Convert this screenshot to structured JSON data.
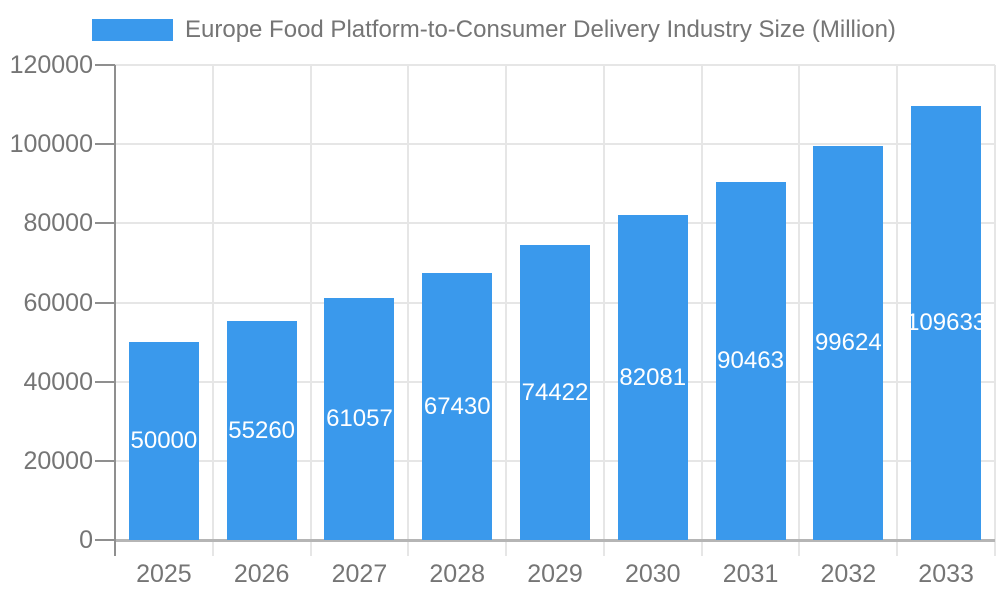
{
  "legend": {
    "items": [
      {
        "label": "Europe Food Platform-to-Consumer Delivery Industry Size (Million)",
        "swatch_color": "#3a99ec"
      }
    ]
  },
  "chart_data": {
    "type": "bar",
    "title": "Europe Food Platform-to-Consumer Delivery Industry Size (Million)",
    "categories": [
      "2025",
      "2026",
      "2027",
      "2028",
      "2029",
      "2030",
      "2031",
      "2032",
      "2033"
    ],
    "series": [
      {
        "name": "Europe Food Platform-to-Consumer Delivery Industry Size (Million)",
        "values": [
          50000,
          55260,
          61057,
          67430,
          74422,
          82081,
          90463,
          99624,
          109633
        ]
      }
    ],
    "value_labels": [
      "50000",
      "55260",
      "61057",
      "67430",
      "74422",
      "82081",
      "90463",
      "99624",
      "109633"
    ],
    "xlabel": "",
    "ylabel": "",
    "ylim": [
      0,
      120000
    ],
    "yticks": [
      0,
      20000,
      40000,
      60000,
      80000,
      100000,
      120000
    ],
    "ytick_labels": [
      "0",
      "20000",
      "40000",
      "60000",
      "80000",
      "100000",
      "120000"
    ],
    "grid": true,
    "legend_position": "top"
  },
  "colors": {
    "bar": "#3a99ec",
    "label_text": "#757575",
    "value_label_text": "#ffffff",
    "gridline": "#e6e6e6",
    "axis_y_line": "#8f8f8f",
    "axis_x_line": "#b5b5b5",
    "background": "#ffffff"
  }
}
